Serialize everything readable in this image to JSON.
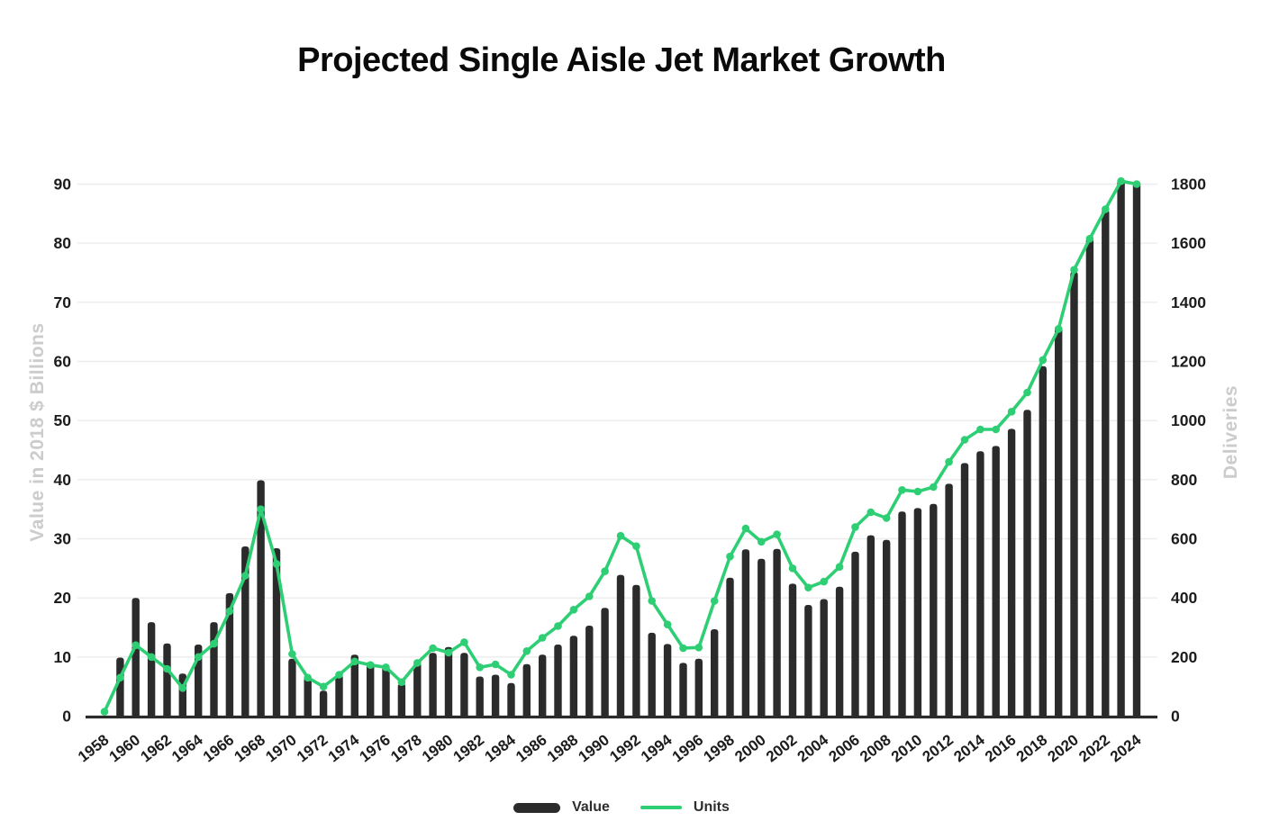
{
  "title": "Projected Single Aisle Jet Market Growth",
  "legend": {
    "value_label": "Value",
    "units_label": "Units"
  },
  "colors": {
    "background": "#ffffff",
    "title": "#0a0a0a",
    "bar": "#2b2b2b",
    "line": "#2ecf74",
    "grid": "#ececec",
    "axis_line": "#2b2b2b",
    "tick_text": "#1c1c1c",
    "axis_title": "#cccccc"
  },
  "chart_data": {
    "type": "bar+line",
    "title": "Projected Single Aisle Jet Market Growth",
    "xlabel": "",
    "ylabel_left": "Value in 2018 $ Billions",
    "ylabel_right": "Deliveries",
    "ylim_left": [
      0,
      90
    ],
    "ylim_right": [
      0,
      1800
    ],
    "yticks_left": [
      0,
      10,
      20,
      30,
      40,
      50,
      60,
      70,
      80,
      90
    ],
    "yticks_right": [
      0,
      200,
      400,
      600,
      800,
      1000,
      1200,
      1400,
      1600,
      1800
    ],
    "xticks": [
      1958,
      1960,
      1962,
      1964,
      1966,
      1968,
      1970,
      1972,
      1974,
      1976,
      1978,
      1980,
      1982,
      1984,
      1986,
      1988,
      1990,
      1992,
      1994,
      1996,
      1998,
      2000,
      2002,
      2004,
      2006,
      2008,
      2010,
      2012,
      2014,
      2016,
      2018,
      2020,
      2022,
      2024
    ],
    "grid": true,
    "legend_position": "bottom",
    "x": [
      1958,
      1959,
      1960,
      1961,
      1962,
      1963,
      1964,
      1965,
      1966,
      1967,
      1968,
      1969,
      1970,
      1971,
      1972,
      1973,
      1974,
      1975,
      1976,
      1977,
      1978,
      1979,
      1980,
      1981,
      1982,
      1983,
      1984,
      1985,
      1986,
      1987,
      1988,
      1989,
      1990,
      1991,
      1992,
      1993,
      1994,
      1995,
      1996,
      1997,
      1998,
      1999,
      2000,
      2001,
      2002,
      2003,
      2004,
      2005,
      2006,
      2007,
      2008,
      2009,
      2010,
      2011,
      2012,
      2013,
      2014,
      2015,
      2016,
      2017,
      2018,
      2019,
      2020,
      2021,
      2022,
      2023,
      2024
    ],
    "series": [
      {
        "name": "Value",
        "type": "bar",
        "axis": "left",
        "values": [
          0,
          9.9,
          20,
          15.9,
          12.3,
          7.2,
          12.1,
          15.9,
          20.8,
          28.7,
          39.9,
          28.4,
          9.7,
          6.7,
          4.3,
          7,
          10.4,
          8.8,
          8.5,
          5.5,
          9,
          10.7,
          11.7,
          10.7,
          6.7,
          7,
          5.6,
          8.8,
          10.4,
          12.1,
          13.6,
          15.3,
          18.3,
          23.9,
          22.2,
          14.1,
          12.2,
          9,
          9.7,
          14.7,
          23.4,
          28.2,
          26.6,
          28.3,
          22.4,
          18.8,
          19.8,
          21.9,
          27.8,
          30.6,
          29.8,
          34.6,
          35.2,
          35.9,
          39.3,
          42.8,
          44.8,
          45.7,
          48.6,
          51.8,
          59.2,
          66,
          75.2,
          80.8,
          85.7,
          90.7,
          90.5
        ]
      },
      {
        "name": "Units",
        "type": "line",
        "axis": "right",
        "values": [
          15,
          130,
          240,
          200,
          160,
          95,
          200,
          245,
          355,
          475,
          700,
          515,
          210,
          130,
          100,
          140,
          185,
          173,
          165,
          115,
          180,
          230,
          215,
          250,
          165,
          175,
          140,
          220,
          265,
          305,
          360,
          405,
          490,
          610,
          575,
          390,
          310,
          230,
          232,
          390,
          540,
          635,
          590,
          615,
          500,
          435,
          455,
          505,
          640,
          690,
          670,
          765,
          760,
          775,
          860,
          935,
          970,
          970,
          1030,
          1095,
          1205,
          1310,
          1510,
          1615,
          1715,
          1810,
          1800
        ]
      }
    ]
  }
}
